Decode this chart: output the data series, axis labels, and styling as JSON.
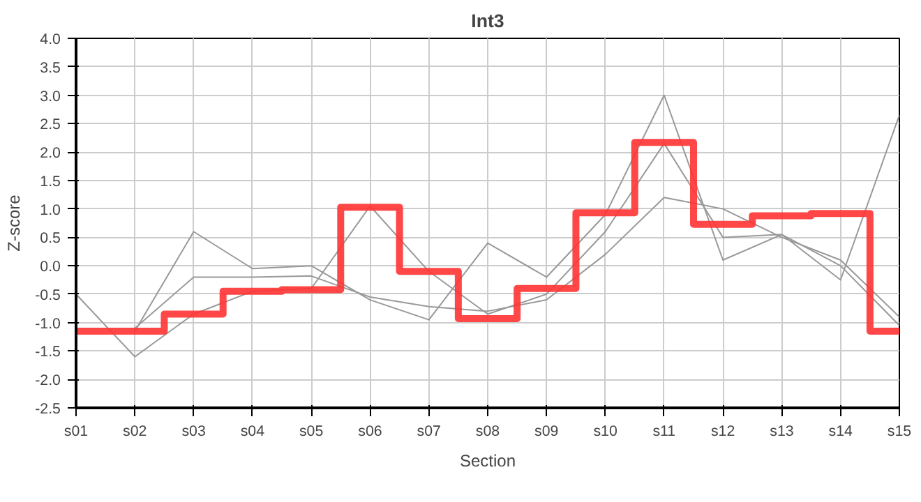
{
  "chart_data": {
    "type": "line",
    "title": "Int3",
    "xlabel": "Section",
    "ylabel": "Z-score",
    "categories": [
      "s01",
      "s02",
      "s03",
      "s04",
      "s05",
      "s06",
      "s07",
      "s08",
      "s09",
      "s10",
      "s11",
      "s12",
      "s13",
      "s14",
      "s15"
    ],
    "ylim": [
      -2.5,
      4.0
    ],
    "yticks": [
      {
        "value": -2.5,
        "label": "-2.5"
      },
      {
        "value": -2,
        "label": "-2.0"
      },
      {
        "value": -1.5,
        "label": "-1.5"
      },
      {
        "value": -1,
        "label": "-1.0"
      },
      {
        "value": -0.5,
        "label": "-0.5"
      },
      {
        "value": 0,
        "label": "0.0"
      },
      {
        "value": 0.5,
        "label": "0.5"
      },
      {
        "value": 1,
        "label": "1.0"
      },
      {
        "value": 1.5,
        "label": "1.5"
      },
      {
        "value": 2,
        "label": "2.0"
      },
      {
        "value": 2.5,
        "label": "2.5"
      },
      {
        "value": 3,
        "label": "3.0"
      },
      {
        "value": 3.5,
        "label": "3.5"
      },
      {
        "value": 4,
        "label": "4.0"
      }
    ],
    "grid": true,
    "series": [
      {
        "color": "#999999",
        "values": [
          -0.5,
          -1.6,
          -0.85,
          -0.45,
          -0.4,
          1.05,
          -0.1,
          -0.85,
          -0.5,
          0.6,
          2.15,
          0.5,
          0.55,
          0.0,
          -1.05
        ]
      },
      {
        "color": "#999999",
        "values": [
          null,
          -1.15,
          0.6,
          -0.05,
          0.0,
          -0.6,
          -0.95,
          0.4,
          -0.2,
          0.9,
          3.0,
          0.1,
          0.55,
          -0.25,
          2.65
        ]
      },
      {
        "color": "#999999",
        "values": [
          null,
          -1.1,
          -0.2,
          -0.2,
          -0.18,
          -0.55,
          -0.72,
          -0.8,
          -0.6,
          0.2,
          1.2,
          1.0,
          0.5,
          0.1,
          -0.9
        ]
      },
      {
        "type": "step",
        "color": "#ff3333",
        "values": [
          -1.15,
          -1.15,
          -0.85,
          -0.45,
          -0.42,
          1.03,
          -0.1,
          -0.93,
          -0.4,
          0.93,
          2.17,
          0.73,
          0.88,
          0.92,
          -1.15
        ]
      }
    ]
  }
}
